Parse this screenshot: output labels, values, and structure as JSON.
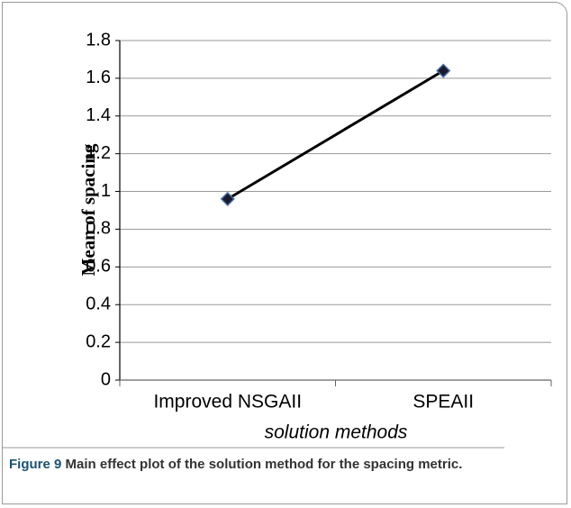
{
  "chart_data": {
    "type": "line",
    "y_label": "Mean of spacing",
    "x_label": "solution methods",
    "categories": [
      "Improved NSGAII",
      "SPEAII"
    ],
    "values": [
      0.96,
      1.64
    ],
    "color": "#000000",
    "marker_color": "#1a1a2e",
    "marker_edge": "#4a6fa5",
    "ylim": [
      0,
      1.8
    ],
    "yticks": [
      0,
      0.2,
      0.4,
      0.6,
      0.8,
      1,
      1.2,
      1.4,
      1.6,
      1.8
    ],
    "grid": true,
    "caption_label": "Figure 9",
    "caption_text": "Main effect plot of the solution method for the spacing metric."
  }
}
